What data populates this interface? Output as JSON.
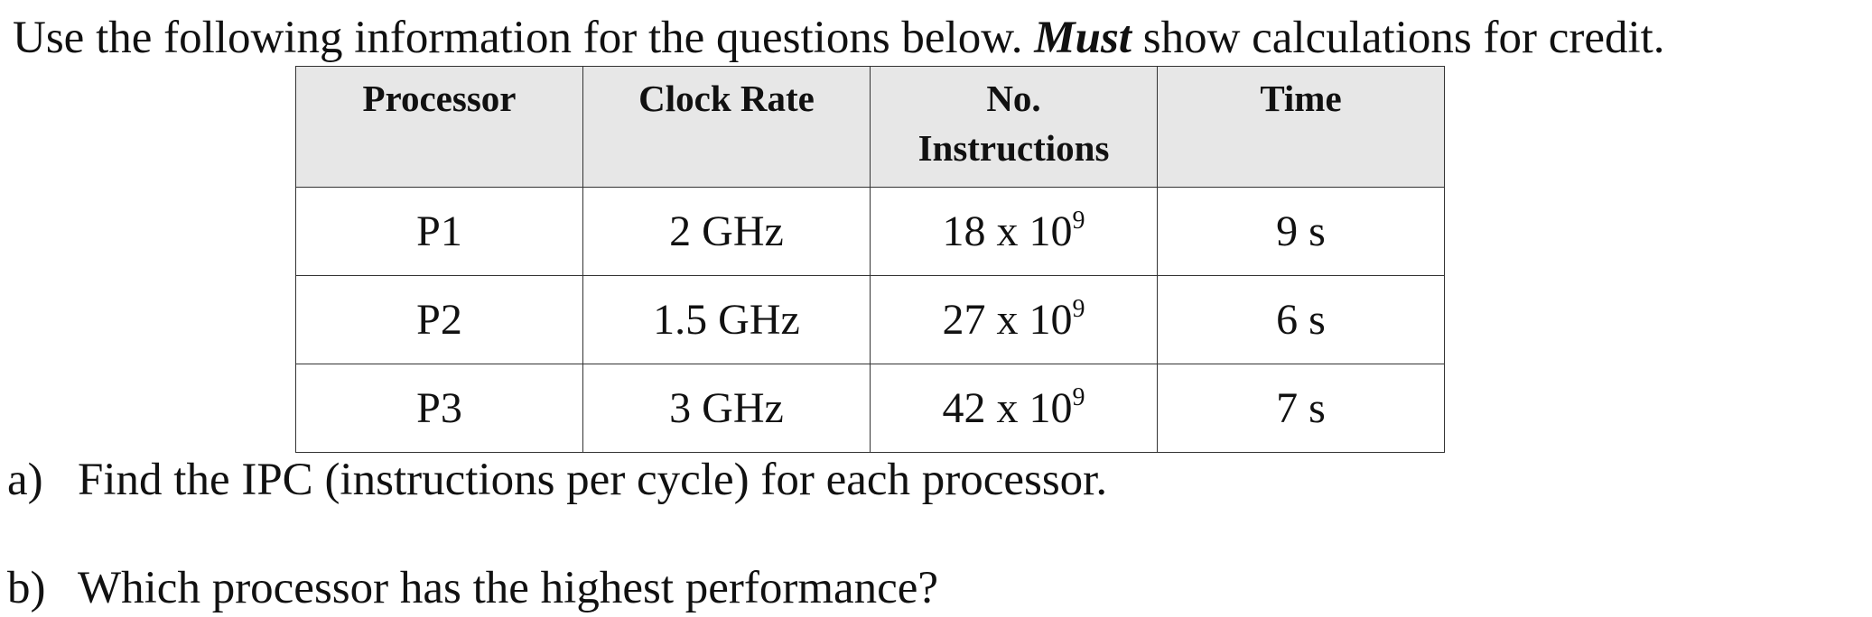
{
  "intro": {
    "before": "Use the following information for the questions below. ",
    "emphasis": "Must",
    "after": " show calculations for credit."
  },
  "table": {
    "headers": [
      "Processor",
      "Clock Rate",
      "No.\nInstructions",
      "Time"
    ],
    "rows": [
      {
        "processor": "P1",
        "clock_rate": "2 GHz",
        "instr_mantissa": "18 x 10",
        "instr_exp": "9",
        "time": "9 s"
      },
      {
        "processor": "P2",
        "clock_rate": "1.5 GHz",
        "instr_mantissa": "27 x 10",
        "instr_exp": "9",
        "time": "6 s"
      },
      {
        "processor": "P3",
        "clock_rate": "3 GHz",
        "instr_mantissa": "42 x 10",
        "instr_exp": "9",
        "time": "7 s"
      }
    ]
  },
  "questions": [
    {
      "label": "a)",
      "text": "Find the IPC (instructions per cycle) for each processor."
    },
    {
      "label": "b)",
      "text": "Which processor has the highest performance?"
    }
  ]
}
